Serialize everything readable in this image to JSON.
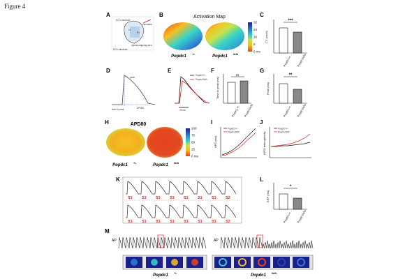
{
  "figure_title": "Figure 4",
  "panels": {
    "A": {
      "letter": "A",
      "labels": [
        "ECG electrode",
        "stimulator",
        "LV",
        "RV",
        "optical mapping area",
        "ECG electrode"
      ]
    },
    "B": {
      "letter": "B",
      "title": "Activation Map",
      "geno_left": "Popdc1",
      "geno_left_sup": "+/-",
      "geno_right": "Popdc1",
      "geno_right_sup": "fs/fs",
      "colorbar": {
        "ticks": [
          "32",
          "24",
          "16",
          "8",
          "0 ms"
        ],
        "colors": [
          "#1a1f8c",
          "#2d7fd6",
          "#37d3c8",
          "#c7e34a",
          "#f5c022",
          "#e8421c"
        ]
      }
    },
    "C": {
      "letter": "C",
      "ylabel": "CV (cm/s)",
      "sig": "***",
      "categories": [
        "Popdc1+/-",
        "Popdc1fs/fs"
      ]
    },
    "D": {
      "letter": "D",
      "labels": [
        "peak",
        "time to peak",
        "APD80"
      ]
    },
    "E": {
      "letter": "E",
      "legend": [
        "Popdc1+/-",
        "Popdc1fs/fs"
      ],
      "scale": "25 ms",
      "colors": [
        "#111111",
        "#e0201b"
      ]
    },
    "F": {
      "letter": "F",
      "ylabel": "Time to peak (ms)",
      "sig": "ns",
      "categories": [
        "Popdc1+/-",
        "Popdc1fs/fs"
      ]
    },
    "G": {
      "letter": "G",
      "ylabel": "Peak (ms)",
      "sig": "**",
      "categories": [
        "Popdc1+/-",
        "Popdc1fs/fs"
      ]
    },
    "H": {
      "letter": "H",
      "title": "APD80",
      "geno_left": "Popdc1",
      "geno_left_sup": "+/-",
      "geno_right": "Popdc1",
      "geno_right_sup": "fs/fs",
      "colorbar": {
        "ticks": [
          "100",
          "75",
          "50",
          "25",
          "0 ms"
        ],
        "colors": [
          "#1a1f8c",
          "#2d7fd6",
          "#37d3c8",
          "#c7e34a",
          "#f5c022",
          "#e8421c"
        ]
      }
    },
    "I": {
      "letter": "I",
      "ylabel": "APD (ms)",
      "legend": [
        "Popdc1+/-",
        "Popdc1fs/fs"
      ]
    },
    "J": {
      "letter": "J",
      "ylabel": "APD heterogeneity",
      "legend": [
        "Popdc1+/-",
        "Popdc1fs/fs"
      ]
    },
    "K": {
      "letter": "K",
      "stim_row1": [
        "S1",
        "S1",
        "S1",
        "S1",
        "S1",
        "S1",
        "S1",
        "S2"
      ],
      "stim_row2": [
        "S1",
        "S1",
        "S1",
        "S1",
        "S1",
        "S1",
        "S1",
        "S2"
      ]
    },
    "L": {
      "letter": "L",
      "ylabel": "ERP (ms)",
      "sig": "*",
      "categories": [
        "Popdc1+/-",
        "Popdc1fs/fs"
      ]
    },
    "M": {
      "letter": "M",
      "left_label": "AP",
      "right_label": "AP",
      "geno_left": "Popdc1",
      "geno_left_sup": "+/-",
      "geno_right": "Popdc1",
      "geno_right_sup": "fs/fs"
    }
  }
}
